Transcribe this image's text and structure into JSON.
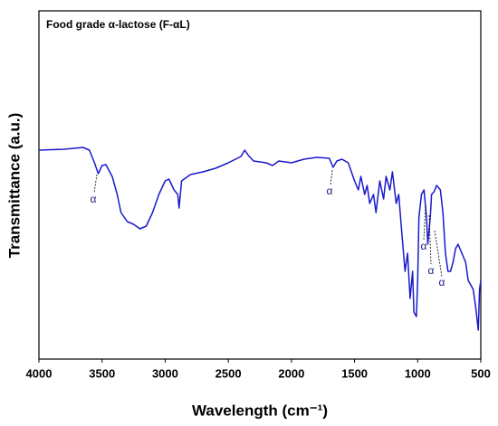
{
  "chart_data": {
    "type": "line",
    "title": "Food grade α-lactose (F-αL)",
    "x_label": "Wavelength (cm⁻¹)",
    "y_label": "Transmittance (a.u.)",
    "x": [
      4000,
      3800,
      3650,
      3600,
      3560,
      3530,
      3500,
      3470,
      3420,
      3380,
      3350,
      3300,
      3250,
      3200,
      3150,
      3100,
      3050,
      3000,
      2970,
      2930,
      2900,
      2890,
      2870,
      2800,
      2700,
      2600,
      2500,
      2400,
      2370,
      2340,
      2300,
      2200,
      2150,
      2100,
      2000,
      1950,
      1900,
      1800,
      1700,
      1670,
      1640,
      1600,
      1550,
      1500,
      1470,
      1450,
      1420,
      1400,
      1380,
      1350,
      1330,
      1300,
      1270,
      1250,
      1220,
      1200,
      1170,
      1150,
      1130,
      1100,
      1080,
      1060,
      1040,
      1030,
      1010,
      1000,
      990,
      970,
      950,
      930,
      920,
      900,
      890,
      870,
      850,
      820,
      800,
      780,
      760,
      740,
      720,
      700,
      680,
      650,
      620,
      600,
      580,
      560,
      540,
      520,
      510,
      500
    ],
    "series": [
      {
        "name": "F-αL",
        "color": "#1a1acc",
        "values": [
          231,
          232,
          234,
          231,
          217,
          205,
          214,
          215,
          202,
          182,
          162,
          152,
          149,
          144,
          147,
          162,
          182,
          197,
          199,
          187,
          182,
          167,
          197,
          204,
          207,
          211,
          217,
          224,
          231,
          225,
          219,
          217,
          214,
          219,
          217,
          219,
          221,
          223,
          222,
          212,
          219,
          221,
          217,
          197,
          187,
          202,
          182,
          192,
          172,
          182,
          162,
          197,
          177,
          202,
          187,
          207,
          172,
          182,
          147,
          97,
          117,
          67,
          97,
          52,
          47,
          87,
          157,
          182,
          187,
          157,
          127,
          157,
          182,
          185,
          192,
          187,
          162,
          117,
          97,
          97,
          107,
          122,
          127,
          117,
          107,
          87,
          82,
          77,
          57,
          32,
          77,
          87
        ]
      }
    ],
    "xlim": [
      4000,
      500
    ],
    "xticks": [
      4000,
      3500,
      3000,
      2500,
      2000,
      1500,
      1000,
      500
    ],
    "ylim": [
      0,
      385
    ],
    "annotations": [
      "α",
      "α",
      "α",
      "α",
      "α"
    ]
  }
}
